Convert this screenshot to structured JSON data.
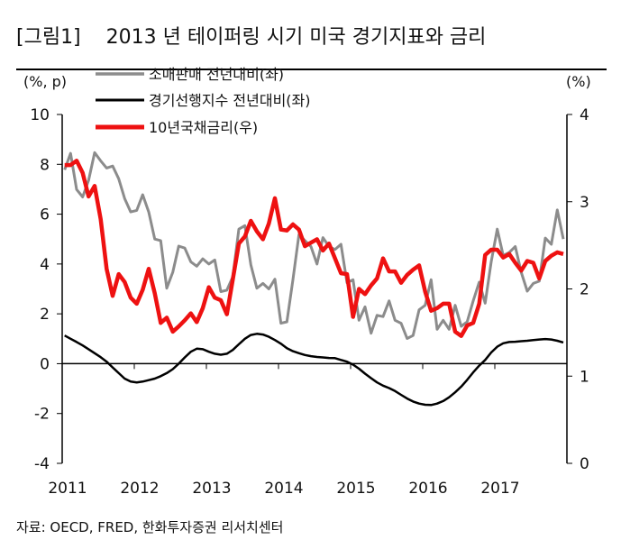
{
  "title": "[그림1]    2013 년 테이퍼링 시기 미국 경기지표와 금리",
  "source": "자료: OECD, FRED, 한화투자증권 리서치센터",
  "chart_data": {
    "type": "line",
    "left_unit": "(%, p)",
    "right_unit": "(%)",
    "left_ylim": [
      -4,
      10
    ],
    "left_ticks": [
      -4,
      -2,
      0,
      2,
      4,
      6,
      8,
      10
    ],
    "right_ylim": [
      0,
      4
    ],
    "right_ticks": [
      0,
      1,
      2,
      3,
      4
    ],
    "x_tick_labels": [
      "2011",
      "2012",
      "2013",
      "2014",
      "2015",
      "2016",
      "2017"
    ],
    "x_start": "2011-01",
    "x_frequency": "monthly",
    "legend_placement": "top-left",
    "grid": false,
    "series": [
      {
        "name": "소매판매 전년대비(좌)",
        "axis": "left",
        "color": "#8c8c8c",
        "values": [
          7.78,
          8.44,
          6.99,
          6.69,
          7.36,
          8.47,
          8.14,
          7.85,
          7.93,
          7.42,
          6.63,
          6.09,
          6.15,
          6.78,
          6.09,
          5.0,
          4.94,
          3.03,
          3.67,
          4.72,
          4.64,
          4.09,
          3.91,
          4.21,
          4.0,
          4.16,
          2.89,
          2.95,
          3.49,
          5.4,
          5.54,
          3.97,
          3.03,
          3.22,
          3.0,
          3.39,
          1.62,
          1.68,
          3.37,
          5.18,
          4.94,
          4.7,
          4.0,
          5.06,
          4.7,
          4.58,
          4.79,
          3.25,
          3.37,
          1.74,
          2.28,
          1.22,
          1.94,
          1.89,
          2.52,
          1.74,
          1.62,
          1.01,
          1.13,
          2.16,
          2.34,
          3.37,
          1.38,
          1.74,
          1.38,
          2.34,
          1.5,
          1.68,
          2.52,
          3.27,
          2.43,
          4.09,
          5.4,
          4.34,
          4.46,
          4.7,
          3.67,
          2.91,
          3.22,
          3.31,
          5.04,
          4.79,
          6.17,
          5.0
        ]
      },
      {
        "name": "경기선행지수 전년대비(좌)",
        "axis": "left",
        "color": "#000000",
        "values": [
          1.13,
          1.0,
          0.87,
          0.73,
          0.58,
          0.42,
          0.26,
          0.08,
          -0.15,
          -0.38,
          -0.6,
          -0.72,
          -0.75,
          -0.72,
          -0.66,
          -0.6,
          -0.5,
          -0.38,
          -0.22,
          0.0,
          0.25,
          0.48,
          0.6,
          0.58,
          0.48,
          0.4,
          0.36,
          0.4,
          0.55,
          0.78,
          1.0,
          1.15,
          1.2,
          1.17,
          1.08,
          0.95,
          0.8,
          0.62,
          0.5,
          0.42,
          0.35,
          0.3,
          0.27,
          0.25,
          0.23,
          0.22,
          0.15,
          0.08,
          -0.04,
          -0.2,
          -0.4,
          -0.58,
          -0.75,
          -0.88,
          -0.98,
          -1.1,
          -1.25,
          -1.4,
          -1.52,
          -1.6,
          -1.65,
          -1.66,
          -1.6,
          -1.5,
          -1.35,
          -1.15,
          -0.92,
          -0.65,
          -0.35,
          -0.08,
          0.15,
          0.45,
          0.68,
          0.82,
          0.87,
          0.88,
          0.9,
          0.92,
          0.95,
          0.97,
          0.99,
          0.97,
          0.92,
          0.85
        ]
      },
      {
        "name": "10년국채금리(우)",
        "axis": "right",
        "color": "#ee1111",
        "values": [
          3.42,
          3.42,
          3.47,
          3.33,
          3.06,
          3.18,
          2.8,
          2.23,
          1.92,
          2.17,
          2.08,
          1.9,
          1.83,
          1.99,
          2.23,
          1.95,
          1.61,
          1.67,
          1.51,
          1.57,
          1.64,
          1.72,
          1.62,
          1.78,
          2.02,
          1.9,
          1.87,
          1.71,
          2.11,
          2.52,
          2.6,
          2.78,
          2.66,
          2.57,
          2.75,
          3.04,
          2.68,
          2.67,
          2.74,
          2.68,
          2.49,
          2.53,
          2.57,
          2.44,
          2.52,
          2.35,
          2.18,
          2.17,
          1.68,
          2.0,
          1.94,
          2.04,
          2.12,
          2.35,
          2.2,
          2.2,
          2.07,
          2.16,
          2.22,
          2.27,
          1.97,
          1.75,
          1.78,
          1.83,
          1.83,
          1.51,
          1.46,
          1.58,
          1.61,
          1.83,
          2.39,
          2.45,
          2.45,
          2.36,
          2.4,
          2.3,
          2.21,
          2.32,
          2.3,
          2.12,
          2.32,
          2.38,
          2.42,
          2.4
        ]
      }
    ]
  }
}
